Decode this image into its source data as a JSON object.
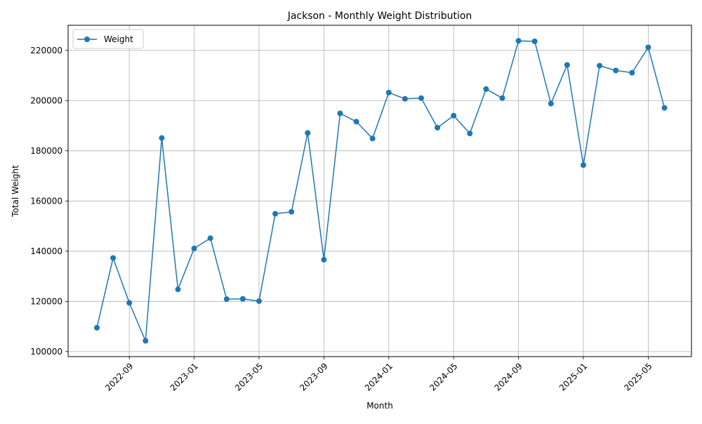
{
  "chart_data": {
    "type": "line",
    "title": "Jackson - Monthly Weight Distribution",
    "xlabel": "Month",
    "ylabel": "Total Weight",
    "grid": true,
    "legend_position": "top-left",
    "color": "#1f77b4",
    "x_tick_labels": [
      "2022-09",
      "2023-01",
      "2023-05",
      "2023-09",
      "2024-01",
      "2024-05",
      "2024-09",
      "2025-01",
      "2025-05"
    ],
    "y_tick_labels": [
      "100000",
      "120000",
      "140000",
      "160000",
      "180000",
      "200000",
      "220000"
    ],
    "ylim": [
      98000,
      230000
    ],
    "series": [
      {
        "name": "Weight",
        "x": [
          "2022-07",
          "2022-08",
          "2022-09",
          "2022-10",
          "2022-11",
          "2022-12",
          "2023-01",
          "2023-02",
          "2023-03",
          "2023-04",
          "2023-05",
          "2023-06",
          "2023-07",
          "2023-08",
          "2023-09",
          "2023-10",
          "2023-11",
          "2023-12",
          "2024-01",
          "2024-02",
          "2024-03",
          "2024-04",
          "2024-05",
          "2024-06",
          "2024-07",
          "2024-08",
          "2024-09",
          "2024-10",
          "2024-11",
          "2024-12",
          "2025-01",
          "2025-02",
          "2025-03",
          "2025-04",
          "2025-05",
          "2025-06"
        ],
        "values": [
          109500,
          137300,
          119400,
          104300,
          185100,
          124800,
          141100,
          145200,
          120900,
          121000,
          120100,
          154900,
          155700,
          187100,
          136600,
          194900,
          191600,
          184900,
          203200,
          200700,
          201000,
          189200,
          194000,
          186900,
          204600,
          201000,
          223800,
          223600,
          198800,
          214200,
          174300,
          213900,
          212000,
          211100,
          221200,
          197100
        ]
      }
    ]
  }
}
